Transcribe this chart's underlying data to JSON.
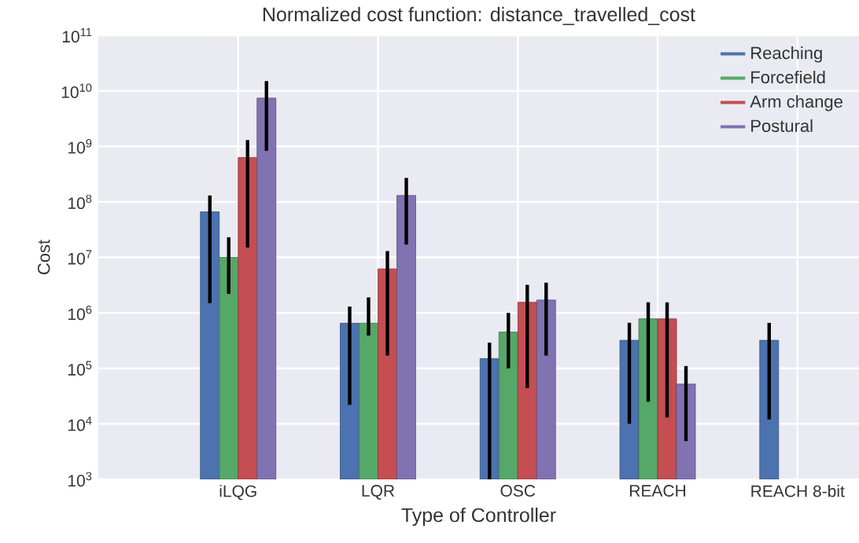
{
  "chart_data": {
    "type": "bar",
    "title": "Normalized cost function: distance_travelled_cost",
    "xlabel": "Type of Controller",
    "ylabel": "Cost",
    "categories": [
      "iLQG",
      "LQR",
      "OSC",
      "REACH",
      "REACH 8-bit"
    ],
    "series": [
      {
        "name": "Reaching",
        "color": "#4c72b0",
        "values": [
          66000000.0,
          650000.0,
          150000.0,
          320000.0,
          320000.0
        ],
        "errors": [
          [
            1500000.0,
            130000000.0
          ],
          [
            22000.0,
            1300000.0
          ],
          [
            1000,
            290000.0
          ],
          [
            10000.0,
            660000.0
          ],
          [
            12000.0,
            660000.0
          ]
        ]
      },
      {
        "name": "Forcefield",
        "color": "#55a868",
        "values": [
          10000000.0,
          650000.0,
          450000.0,
          780000.0,
          null
        ],
        "errors": [
          [
            2200000.0,
            23000000.0
          ],
          [
            390000.0,
            1900000.0
          ],
          [
            100000.0,
            1000000.0
          ],
          [
            25000.0,
            1550000.0
          ],
          null
        ]
      },
      {
        "name": "Arm change",
        "color": "#c44e52",
        "values": [
          630000000.0,
          6200000.0,
          1550000.0,
          780000.0,
          null
        ],
        "errors": [
          [
            15000000.0,
            1300000000.0
          ],
          [
            170000.0,
            13000000.0
          ],
          [
            44000.0,
            3200000.0
          ],
          [
            13000.0,
            1550000.0
          ],
          null
        ]
      },
      {
        "name": "Postural",
        "color": "#8172b2",
        "values": [
          7400000000.0,
          130000000.0,
          1700000.0,
          52000.0,
          null
        ],
        "errors": [
          [
            830000000.0,
            15000000000.0
          ],
          [
            17000000.0,
            270000000.0
          ],
          [
            170000.0,
            3500000.0
          ],
          [
            4900.0,
            110000.0
          ],
          null
        ]
      }
    ],
    "log": "y",
    "ylim": [
      1000,
      100000000000.0
    ],
    "yticks": [
      {
        "value": 1000,
        "label": "10$^{3}$"
      },
      {
        "value": 10000,
        "label": "10$^{4}$"
      },
      {
        "value": 100000,
        "label": "10$^{5}$"
      },
      {
        "value": 1000000,
        "label": "10$^{6}$"
      },
      {
        "value": 10000000,
        "label": "10$^{7}$"
      },
      {
        "value": 100000000,
        "label": "10$^{8}$"
      },
      {
        "value": 1000000000,
        "label": "10$^{9}$"
      },
      {
        "value": 10000000000,
        "label": "10$^{10}$"
      },
      {
        "value": 100000000000,
        "label": "10$^{11}$"
      }
    ],
    "grid": true,
    "legend": "top right"
  }
}
